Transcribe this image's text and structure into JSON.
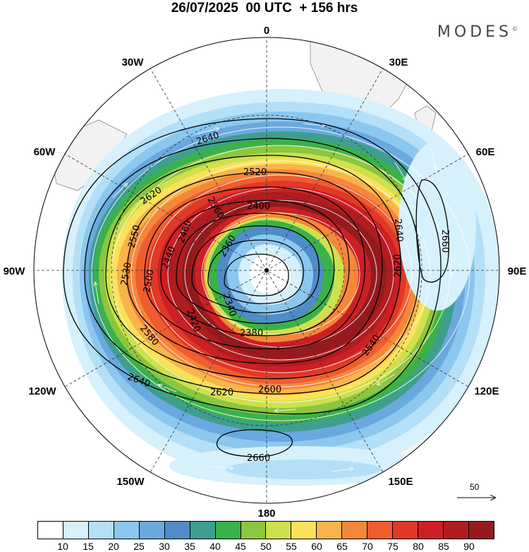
{
  "title": "26/07/2025  00 UTC  + 156 hrs",
  "brand": "MODES",
  "brand_mark": "©",
  "longitude_labels": {
    "n0": "0",
    "e30": "30E",
    "e60": "60E",
    "e90": "90E",
    "e120": "120E",
    "e150": "150E",
    "s180": "180",
    "w150": "150W",
    "w120": "120W",
    "w90": "90W",
    "w60": "60W",
    "w30": "30W"
  },
  "contour_labels": [
    "2640",
    "2620",
    "2560",
    "2520",
    "2400",
    "2360",
    "2340",
    "2380",
    "2460",
    "2440",
    "2500",
    "2530",
    "2550",
    "2600",
    "2580",
    "2420",
    "2660",
    "2640",
    "2620",
    "2540",
    "2640",
    "2620",
    "2660"
  ],
  "colorbar": {
    "colors": [
      "#ffffff",
      "#d6f0fc",
      "#b3e0f7",
      "#8cc7ee",
      "#6aa9df",
      "#4f8cc8",
      "#3e9f8e",
      "#3bb14a",
      "#8dc63f",
      "#cfe04d",
      "#fbe25a",
      "#f9b44a",
      "#f5873a",
      "#ef5d2f",
      "#e23826",
      "#cc2025",
      "#b11c1f",
      "#951a1d"
    ],
    "ticks": [
      "10",
      "15",
      "20",
      "25",
      "30",
      "35",
      "40",
      "45",
      "50",
      "55",
      "60",
      "65",
      "70",
      "75",
      "80",
      "85",
      "90"
    ]
  },
  "vector_reference": {
    "label": "50"
  },
  "colors": {
    "land": "#f2f2f2",
    "coast": "#888888",
    "grid": "#333333"
  }
}
